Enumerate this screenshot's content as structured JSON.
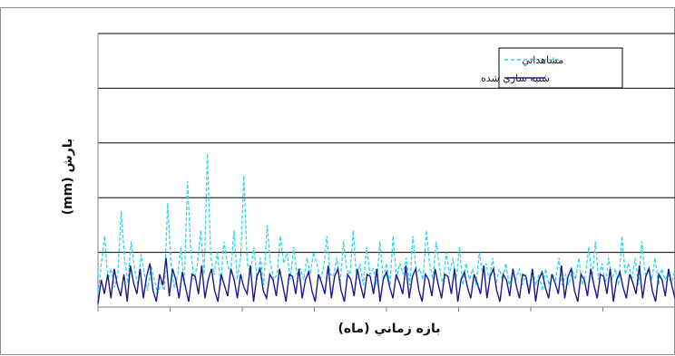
{
  "chart_data": {
    "type": "line",
    "title": "",
    "xlabel": "بازه زماني (ماه)",
    "ylabel": "بارش (mm)",
    "grid": true,
    "legend_position": "top-right",
    "colors": {
      "observed": "#33d6e6",
      "simulated": "#1a1a8c",
      "grid": "#000000",
      "axis": "#808080"
    },
    "ylim": [
      0,
      250
    ],
    "y_gridlines": [
      50,
      100,
      150,
      200,
      250
    ],
    "x_tick_count": 8,
    "series": [
      {
        "name": "مشاهداتي",
        "key": "observed",
        "style": "dashed",
        "values": [
          12,
          40,
          65,
          25,
          35,
          18,
          30,
          88,
          45,
          22,
          60,
          35,
          20,
          48,
          30,
          15,
          38,
          25,
          12,
          22,
          15,
          95,
          40,
          18,
          28,
          55,
          20,
          115,
          50,
          25,
          40,
          70,
          30,
          140,
          45,
          30,
          50,
          20,
          60,
          40,
          30,
          70,
          25,
          45,
          120,
          40,
          30,
          55,
          25,
          45,
          20,
          75,
          40,
          25,
          30,
          65,
          40,
          50,
          25,
          55,
          30,
          35,
          25,
          45,
          30,
          50,
          40,
          25,
          35,
          65,
          30,
          28,
          45,
          20,
          60,
          35,
          30,
          70,
          25,
          40,
          20,
          55,
          30,
          35,
          20,
          60,
          25,
          40,
          20,
          65,
          25,
          40,
          30,
          45,
          20,
          65,
          30,
          35,
          25,
          70,
          40,
          25,
          60,
          35,
          20,
          50,
          30,
          45,
          25,
          55,
          20,
          40,
          25,
          35,
          20,
          50,
          30,
          40,
          25,
          45,
          20,
          35,
          25,
          40,
          20,
          30,
          25,
          35,
          20,
          30,
          15,
          35,
          20,
          30,
          15,
          35,
          20,
          30,
          25,
          45,
          20,
          30,
          20,
          35,
          25,
          45,
          20,
          30,
          55,
          25,
          60,
          25,
          40,
          20,
          45,
          25,
          35,
          20,
          65,
          30,
          40,
          25,
          45,
          20,
          60,
          30,
          35,
          25,
          45,
          20,
          35,
          25,
          30,
          20,
          35
        ]
      },
      {
        "name": "شبيه سازي شده",
        "key": "simulated",
        "style": "solid",
        "values": [
          3,
          25,
          12,
          30,
          8,
          35,
          20,
          10,
          30,
          5,
          38,
          22,
          12,
          35,
          8,
          28,
          40,
          15,
          5,
          30,
          20,
          45,
          10,
          35,
          25,
          8,
          32,
          18,
          5,
          30,
          28,
          12,
          38,
          8,
          25,
          35,
          15,
          5,
          30,
          20,
          10,
          35,
          25,
          8,
          30,
          18,
          12,
          38,
          5,
          28,
          35,
          15,
          8,
          30,
          25,
          10,
          35,
          20,
          5,
          30,
          28,
          12,
          35,
          8,
          25,
          32,
          15,
          5,
          30,
          22,
          12,
          38,
          8,
          28,
          35,
          15,
          5,
          30,
          25,
          10,
          35,
          20,
          8,
          30,
          28,
          12,
          35,
          5,
          25,
          32,
          18,
          8,
          30,
          22,
          12,
          38,
          8,
          28,
          35,
          15,
          5,
          30,
          25,
          10,
          35,
          20,
          8,
          30,
          28,
          12,
          35,
          5,
          25,
          32,
          18,
          8,
          30,
          22,
          12,
          38,
          8,
          28,
          35,
          15,
          5,
          30,
          25,
          10,
          35,
          20,
          8,
          30,
          28,
          12,
          35,
          5,
          25,
          32,
          18,
          8,
          30,
          22,
          12,
          38,
          8,
          28,
          35,
          15,
          5,
          30,
          25,
          10,
          35,
          20,
          8,
          30,
          28,
          12,
          35,
          5,
          25,
          32,
          18,
          8,
          30,
          22,
          12,
          38,
          8,
          28,
          35,
          15,
          5,
          30,
          25,
          10,
          35,
          20,
          8
        ]
      }
    ]
  }
}
